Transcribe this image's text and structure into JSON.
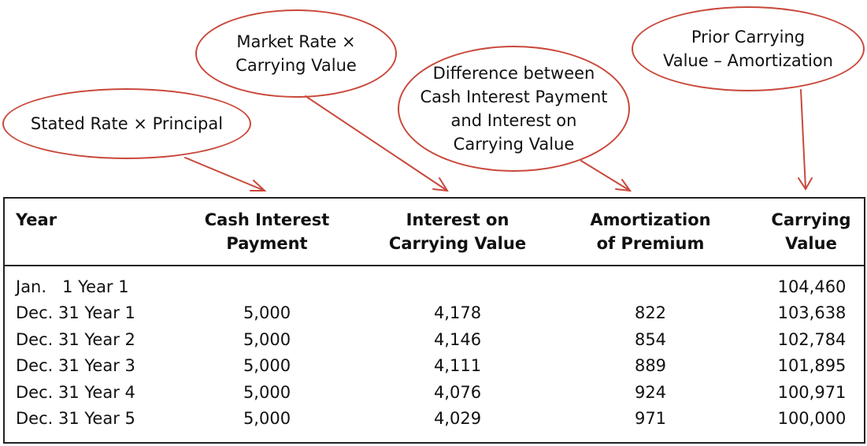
{
  "callouts": [
    {
      "lines": [
        "Stated Rate × Principal"
      ]
    },
    {
      "lines": [
        "Market Rate ×",
        "Carrying Value"
      ]
    },
    {
      "lines": [
        "Difference between",
        "Cash Interest Payment",
        "and Interest on",
        "Carrying Value"
      ]
    },
    {
      "lines": [
        "Prior Carrying",
        "Value – Amortization"
      ]
    }
  ],
  "colors": {
    "callout_stroke": "#c9483b",
    "table_border": "#222222"
  },
  "table": {
    "headers": [
      [
        "Year"
      ],
      [
        "Cash Interest",
        "Payment"
      ],
      [
        "Interest on",
        "Carrying Value"
      ],
      [
        "Amortization",
        "of Premium"
      ],
      [
        "Carrying",
        "Value"
      ]
    ],
    "rows": [
      {
        "year": "Jan.   1 Year 1",
        "cash": "",
        "interest": "",
        "amortization": "",
        "carrying": "104,460"
      },
      {
        "year": "Dec. 31 Year 1",
        "cash": "5,000",
        "interest": "4,178",
        "amortization": "822",
        "carrying": "103,638"
      },
      {
        "year": "Dec. 31 Year 2",
        "cash": "5,000",
        "interest": "4,146",
        "amortization": "854",
        "carrying": "102,784"
      },
      {
        "year": "Dec. 31 Year 3",
        "cash": "5,000",
        "interest": "4,111",
        "amortization": "889",
        "carrying": "101,895"
      },
      {
        "year": "Dec. 31 Year 4",
        "cash": "5,000",
        "interest": "4,076",
        "amortization": "924",
        "carrying": "100,971"
      },
      {
        "year": "Dec. 31 Year 5",
        "cash": "5,000",
        "interest": "4,029",
        "amortization": "971",
        "carrying": "100,000"
      }
    ]
  }
}
